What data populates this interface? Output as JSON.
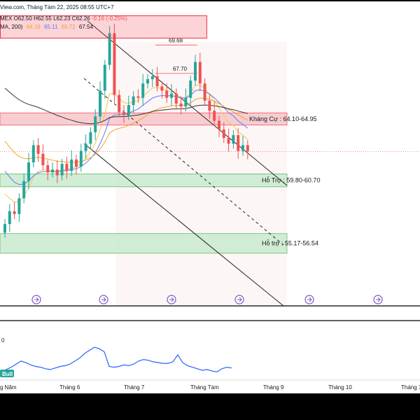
{
  "header": {
    "source_date": "View.com, Tháng Tám 22, 2025 08:55 UTC+7",
    "ohlc": {
      "symbol_fragment": "MEX",
      "open": "O62.50",
      "high": "H62.55",
      "low": "L62.23",
      "close": "C62.26",
      "change": "-0.16 (-0.25%)"
    },
    "ma_label": "MA, 200)",
    "ma_values": [
      "64.19",
      "65.11",
      "65.72",
      "67.54"
    ]
  },
  "colors": {
    "up": "#26a69a",
    "down": "#ef5350",
    "ma_orange": "#f7a21b",
    "ma_yellow": "#f2c94c",
    "ma_blue": "#5b7cff",
    "ma_black": "#333333",
    "resistance_fill": "#f7c6cb",
    "support_fill": "#c9ebcf",
    "rsi_line": "#2962ff"
  },
  "chart_data": {
    "type": "line",
    "title": "",
    "xlabel": "",
    "ylabel": "",
    "x_ticks": [
      "g Năm",
      "Tháng 6",
      "Tháng 7",
      "Tháng Tám",
      "Tháng 9",
      "Tháng 10",
      "Tháng 1"
    ],
    "ylim": [
      50,
      72
    ],
    "series": [
      {
        "values": [
          57.2,
          58.1,
          57.9,
          59.0,
          60.2,
          61.5,
          62.7,
          62.1,
          61.3,
          60.8,
          61.0,
          60.6,
          61.4,
          60.9,
          61.7,
          61.2,
          62.3,
          62.8,
          63.6,
          64.7,
          66.5,
          68.3,
          70.5,
          66.2,
          65.0,
          64.8,
          65.5,
          66.1,
          66.0,
          67.0,
          67.3,
          67.5,
          66.8,
          66.5,
          66.0,
          66.3,
          65.6,
          65.4,
          66.0,
          67.2,
          68.5,
          67.0,
          65.8,
          65.1,
          64.4,
          63.8,
          63.2,
          62.8,
          63.4,
          62.3,
          62.7,
          62.26
        ]
      }
    ],
    "annotations": [
      {
        "label": "69.68",
        "value": 69.68
      },
      {
        "label": "67.70",
        "value": 67.7
      }
    ],
    "zones": [
      {
        "label": "Kháng Cự : 64.10-64.95",
        "low": 64.1,
        "high": 64.95,
        "kind": "resistance"
      },
      {
        "label": "Hỗ Trợ : 59.80-60.70",
        "low": 59.8,
        "high": 60.7,
        "kind": "support"
      },
      {
        "label": "Hỗ trợ : 55.17-56.54",
        "low": 55.17,
        "high": 56.54,
        "kind": "support"
      }
    ],
    "rsi": {
      "top_label": "0",
      "badge": "Bull",
      "values": [
        38,
        41,
        44,
        48,
        52,
        50,
        47,
        45,
        44,
        42,
        41,
        43,
        45,
        46,
        48,
        52,
        56,
        62,
        66,
        70,
        68,
        64,
        45,
        44,
        45,
        47,
        46,
        48,
        52,
        54,
        53,
        51,
        50,
        49,
        49,
        51,
        60,
        50,
        46,
        44,
        42,
        40,
        41,
        39,
        38,
        42,
        44,
        43
      ]
    }
  }
}
